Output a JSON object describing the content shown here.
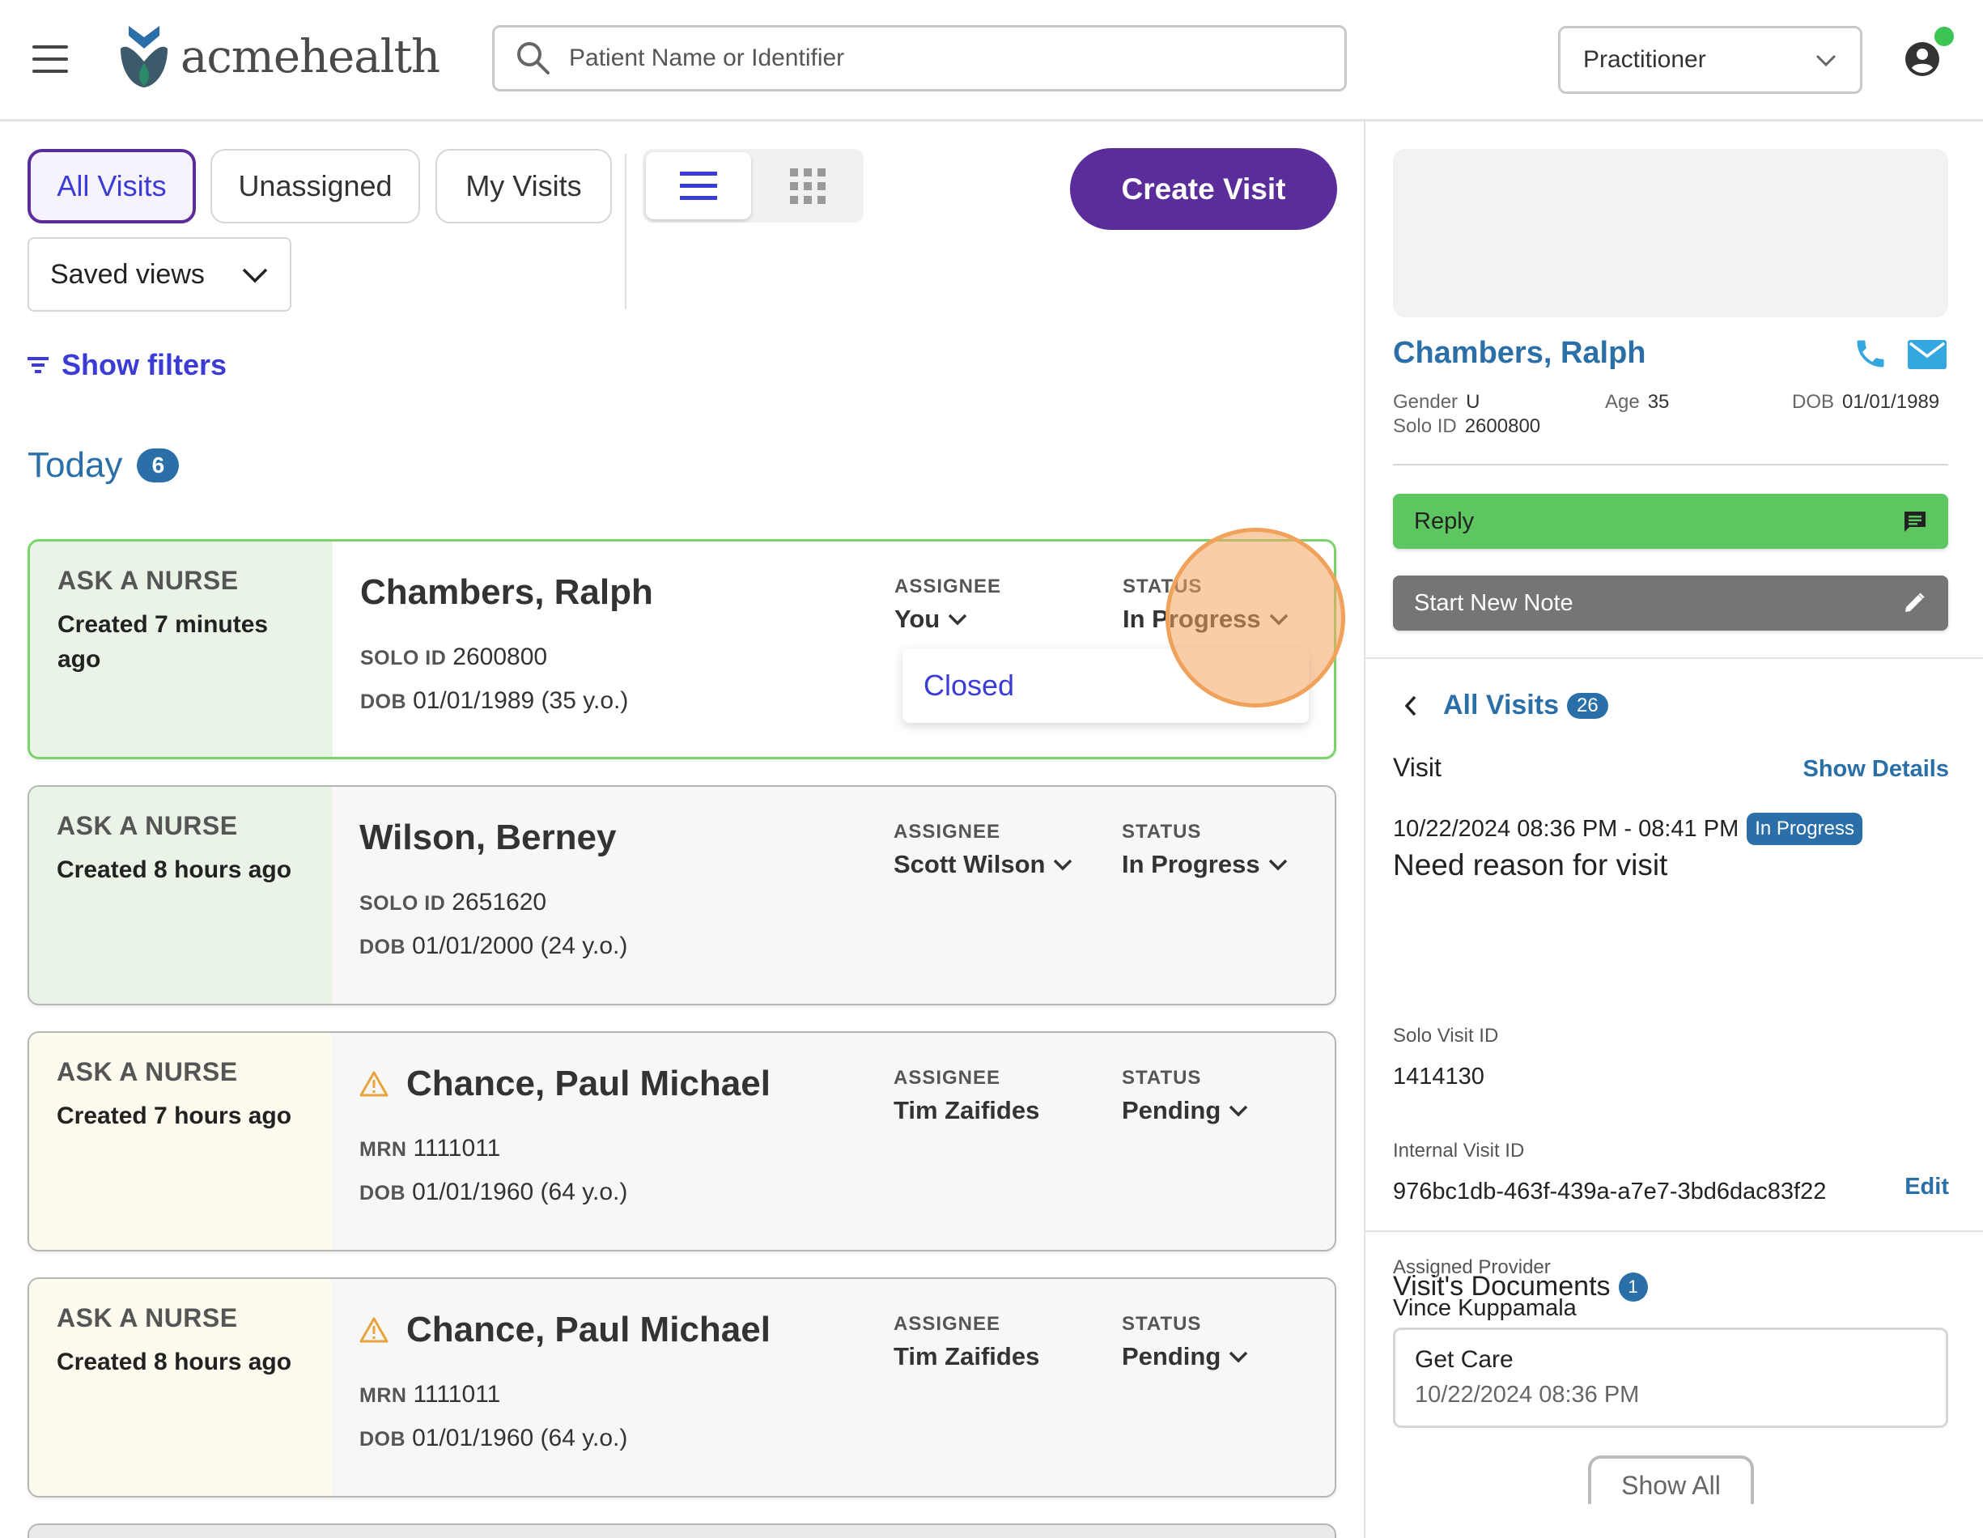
{
  "header": {
    "logo_text": "acmehealth",
    "search_placeholder": "Patient Name or Identifier",
    "role_selected": "Practitioner",
    "online_status_color": "#3cc455"
  },
  "toolbar": {
    "tabs": [
      {
        "label": "All Visits",
        "active": true
      },
      {
        "label": "Unassigned",
        "active": false
      },
      {
        "label": "My Visits",
        "active": false
      }
    ],
    "saved_views_label": "Saved views",
    "create_visit_label": "Create Visit",
    "show_filters_label": "Show filters",
    "view_mode": "list"
  },
  "today": {
    "label": "Today",
    "count": "6"
  },
  "visits": [
    {
      "type": "ASK A NURSE",
      "created": "Created 7 minutes ago",
      "name": "Chambers, Ralph",
      "id_label": "SOLO ID",
      "id_value": "2600800",
      "dob_label": "DOB",
      "dob_value": "01/01/1989 (35 y.o.)",
      "assignee_label": "ASSIGNEE",
      "assignee": "You",
      "status_label": "STATUS",
      "status": "In Progress",
      "status_option": "Closed",
      "warning": false,
      "assignee_dropdown": true
    },
    {
      "type": "ASK A NURSE",
      "created": "Created 8 hours ago",
      "name": "Wilson, Berney",
      "id_label": "SOLO ID",
      "id_value": "2651620",
      "dob_label": "DOB",
      "dob_value": "01/01/2000 (24 y.o.)",
      "assignee_label": "ASSIGNEE",
      "assignee": "Scott Wilson",
      "status_label": "STATUS",
      "status": "In Progress",
      "warning": false,
      "assignee_dropdown": true
    },
    {
      "type": "ASK A NURSE",
      "created": "Created 7 hours ago",
      "name": "Chance, Paul Michael",
      "id_label": "MRN",
      "id_value": "1111011",
      "dob_label": "DOB",
      "dob_value": "01/01/1960 (64 y.o.)",
      "assignee_label": "ASSIGNEE",
      "assignee": "Tim Zaifides",
      "status_label": "STATUS",
      "status": "Pending",
      "warning": true,
      "assignee_dropdown": false
    },
    {
      "type": "ASK A NURSE",
      "created": "Created 8 hours ago",
      "name": "Chance, Paul Michael",
      "id_label": "MRN",
      "id_value": "1111011",
      "dob_label": "DOB",
      "dob_value": "01/01/1960 (64 y.o.)",
      "assignee_label": "ASSIGNEE",
      "assignee": "Tim Zaifides",
      "status_label": "STATUS",
      "status": "Pending",
      "warning": true,
      "assignee_dropdown": false
    }
  ],
  "patient": {
    "name": "Chambers, Ralph",
    "gender_label": "Gender",
    "gender": "U",
    "age_label": "Age",
    "age": "35",
    "dob_label": "DOB",
    "dob": "01/01/1989",
    "solo_id_label": "Solo ID",
    "solo_id": "2600800",
    "reply_label": "Reply",
    "new_note_label": "Start New Note"
  },
  "visit_detail": {
    "back_label": "All Visits",
    "back_count": "26",
    "title": "Visit",
    "show_details_label": "Show Details",
    "time_range": "10/22/2024 08:36 PM - 08:41 PM",
    "status_badge": "In Progress",
    "reason": "Need reason for visit",
    "solo_visit_id_label": "Solo Visit ID",
    "solo_visit_id": "1414130",
    "internal_visit_id_label": "Internal Visit ID",
    "internal_visit_id": "976bc1db-463f-439a-a7e7-3bd6dac83f22",
    "assigned_provider_label": "Assigned Provider",
    "assigned_provider": "Vince Kuppamala",
    "edit_label": "Edit"
  },
  "documents": {
    "title": "Visit's Documents",
    "count": "1",
    "items": [
      {
        "name": "Get Care",
        "date": "10/22/2024 08:36 PM"
      }
    ],
    "show_all_label": "Show All"
  },
  "colors": {
    "brand_purple": "#5b2d9a",
    "link_blue": "#2a6fa8",
    "tab_blue": "#3b3bd6",
    "reply_green": "#5ec660",
    "note_gray": "#757575",
    "warning_orange": "#e8a33c"
  }
}
